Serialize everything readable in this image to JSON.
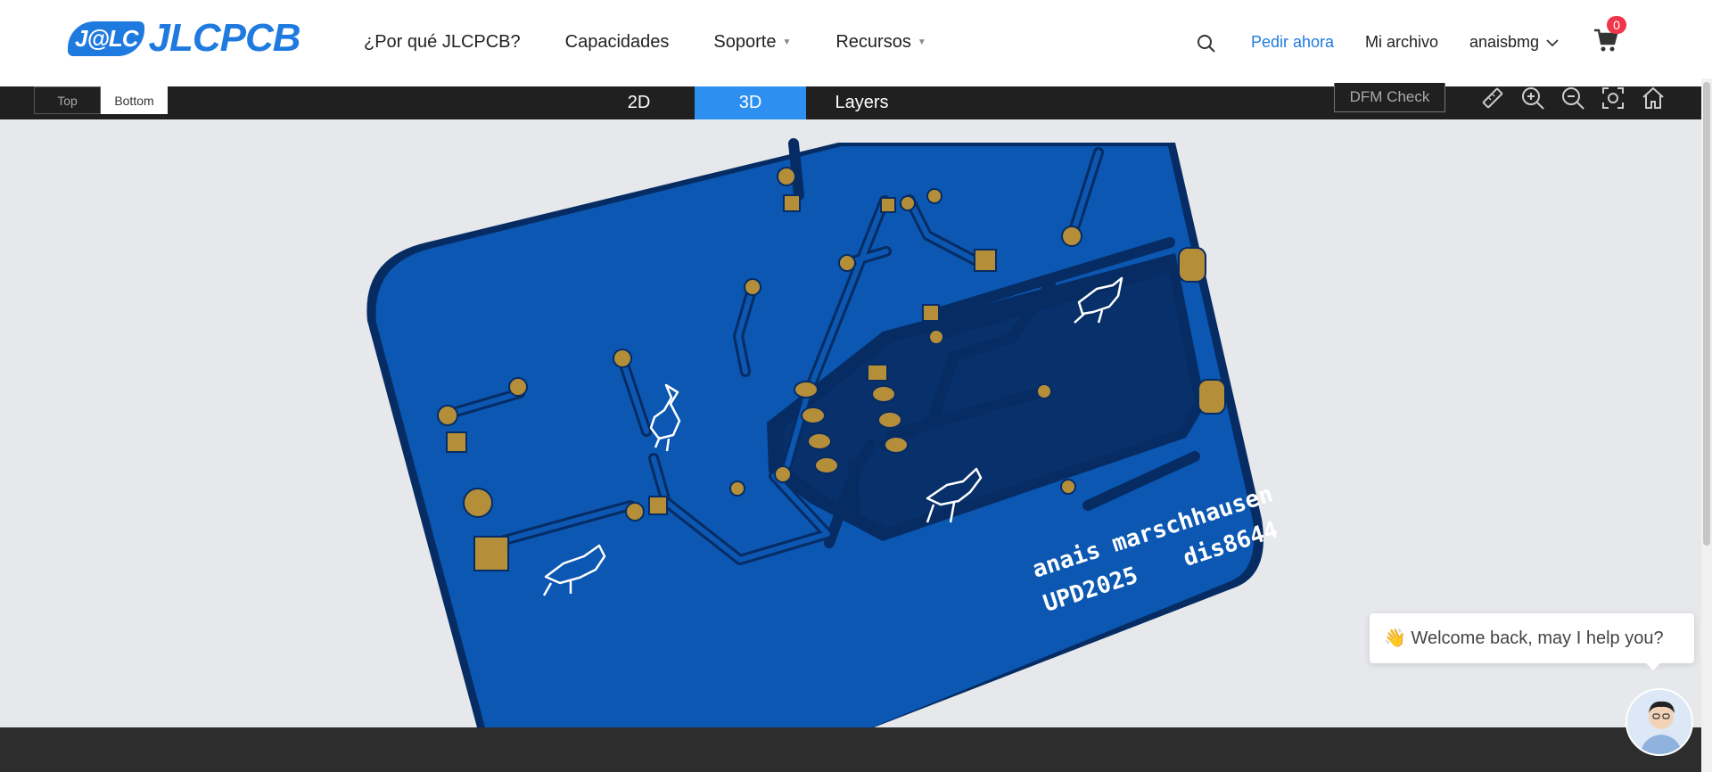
{
  "header": {
    "logo_badge": "J@LC",
    "logo_text": "JLCPCB",
    "menu": [
      {
        "label": "¿Por qué JLCPCB?",
        "dropdown": false
      },
      {
        "label": "Capacidades",
        "dropdown": false
      },
      {
        "label": "Soporte",
        "dropdown": true
      },
      {
        "label": "Recursos",
        "dropdown": true
      }
    ],
    "order_now": "Pedir ahora",
    "my_files": "Mi archivo",
    "username": "anaisbmg",
    "cart_count": "0"
  },
  "viewer_toolbar": {
    "side_options": [
      "Top",
      "Bottom"
    ],
    "active_side": "Bottom",
    "view_tabs": [
      "2D",
      "3D",
      "Layers"
    ],
    "active_view": "3D",
    "dfm_label": "DFM Check",
    "tools": [
      "ruler-icon",
      "zoom-in-icon",
      "zoom-out-icon",
      "fit-screen-icon",
      "home-icon"
    ]
  },
  "pcb": {
    "silkscreen_line1": "anais marschhausen",
    "silkscreen_line2": "UPD2025",
    "silkscreen_line3": "dis8644",
    "board_color": "#0b57b1",
    "fill_color": "#08306b",
    "pad_color": "#b58e3a",
    "trace_color": "#062c63"
  },
  "chat": {
    "emoji": "👋",
    "message": "Welcome back, may I help you?"
  },
  "colors": {
    "brand_blue": "#1f7ae0",
    "active_tab": "#2d8ff0",
    "toolbar_bg": "#202020",
    "badge_red": "#f0364a"
  }
}
